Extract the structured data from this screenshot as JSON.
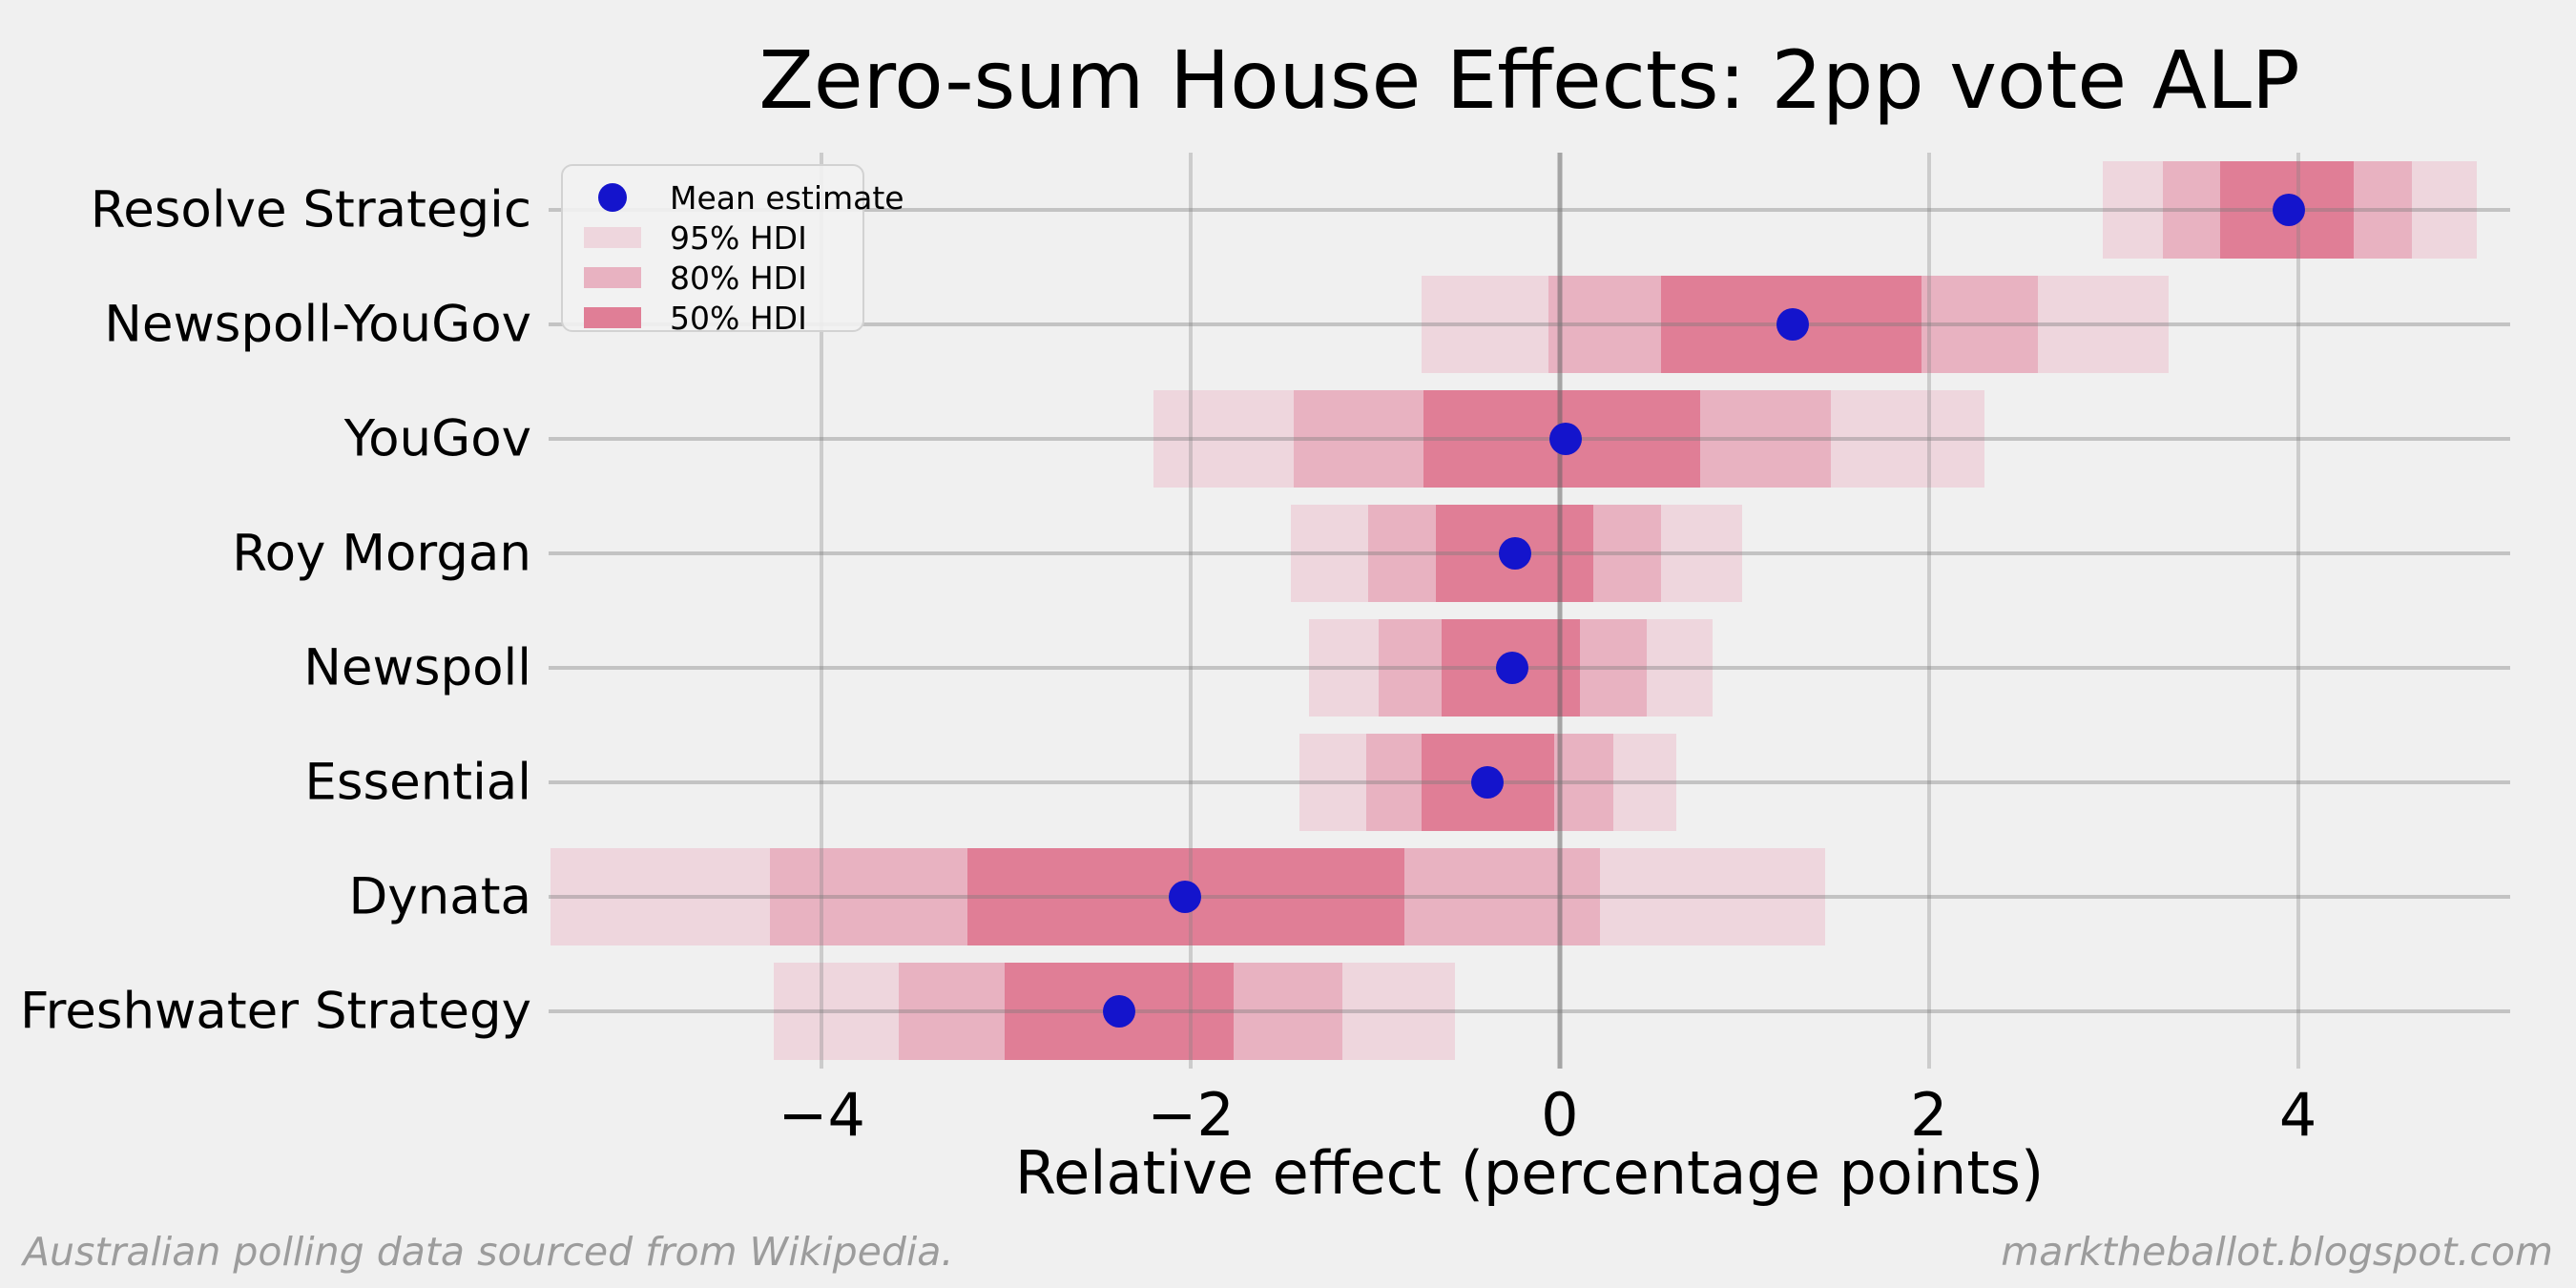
{
  "figure": {
    "footer_left": "Australian polling data sourced from Wikipedia.",
    "footer_right": "marktheballot.blogspot.com"
  },
  "chart_data": {
    "type": "forest-interval",
    "title": "Zero-sum House Effects: 2pp vote ALP",
    "xlabel": "Relative effect (percentage points)",
    "xlim": [
      -5.48,
      5.15
    ],
    "grid": "both",
    "xticks": [
      {
        "value": -4,
        "label": "−4"
      },
      {
        "value": -2,
        "label": "−2"
      },
      {
        "value": 0,
        "label": "0"
      },
      {
        "value": 2,
        "label": "2"
      },
      {
        "value": 4,
        "label": "4"
      }
    ],
    "rows": [
      {
        "house": "Resolve Strategic",
        "mean": 3.95,
        "hdi95": [
          2.94,
          4.97
        ],
        "hdi80": [
          3.27,
          4.62
        ],
        "hdi50": [
          3.58,
          4.3
        ]
      },
      {
        "house": "Newspoll-YouGov",
        "mean": 1.26,
        "hdi95": [
          -0.75,
          3.3
        ],
        "hdi80": [
          -0.06,
          2.59
        ],
        "hdi50": [
          0.55,
          1.96
        ]
      },
      {
        "house": "YouGov",
        "mean": 0.03,
        "hdi95": [
          -2.2,
          2.3
        ],
        "hdi80": [
          -1.44,
          1.47
        ],
        "hdi50": [
          -0.74,
          0.76
        ]
      },
      {
        "house": "Roy Morgan",
        "mean": -0.24,
        "hdi95": [
          -1.46,
          0.99
        ],
        "hdi80": [
          -1.04,
          0.55
        ],
        "hdi50": [
          -0.67,
          0.18
        ]
      },
      {
        "house": "Newspoll",
        "mean": -0.26,
        "hdi95": [
          -1.36,
          0.83
        ],
        "hdi80": [
          -0.98,
          0.47
        ],
        "hdi50": [
          -0.64,
          0.11
        ]
      },
      {
        "house": "Essential",
        "mean": -0.39,
        "hdi95": [
          -1.41,
          0.63
        ],
        "hdi80": [
          -1.05,
          0.29
        ],
        "hdi50": [
          -0.75,
          -0.03
        ]
      },
      {
        "house": "Dynata",
        "mean": -2.03,
        "hdi95": [
          -5.47,
          1.44
        ],
        "hdi80": [
          -4.28,
          0.22
        ],
        "hdi50": [
          -3.21,
          -0.84
        ]
      },
      {
        "house": "Freshwater Strategy",
        "mean": -2.39,
        "hdi95": [
          -4.26,
          -0.57
        ],
        "hdi80": [
          -3.58,
          -1.18
        ],
        "hdi50": [
          -3.01,
          -1.77
        ]
      }
    ],
    "legend": {
      "position": "upper-left",
      "items": [
        {
          "label": "Mean estimate",
          "marker": "dot"
        },
        {
          "label": "95% HDI",
          "marker": "band95"
        },
        {
          "label": "80% HDI",
          "marker": "band80"
        },
        {
          "label": "50% HDI",
          "marker": "band50"
        }
      ]
    },
    "colors": {
      "background": "#f0f0f0",
      "band95": "#eed6dd",
      "band80": "#e8b2c1",
      "band50": "#e07e96",
      "dot": "#1414cc",
      "gridline": "rgba(130,130,130,0.33)",
      "zero_line": "rgba(96,96,96,0.52)",
      "row_line": "rgba(120,120,120,0.38)",
      "text": "#000000",
      "footer": "#9c9c9c",
      "legend_border": "#d2d2d2"
    }
  }
}
